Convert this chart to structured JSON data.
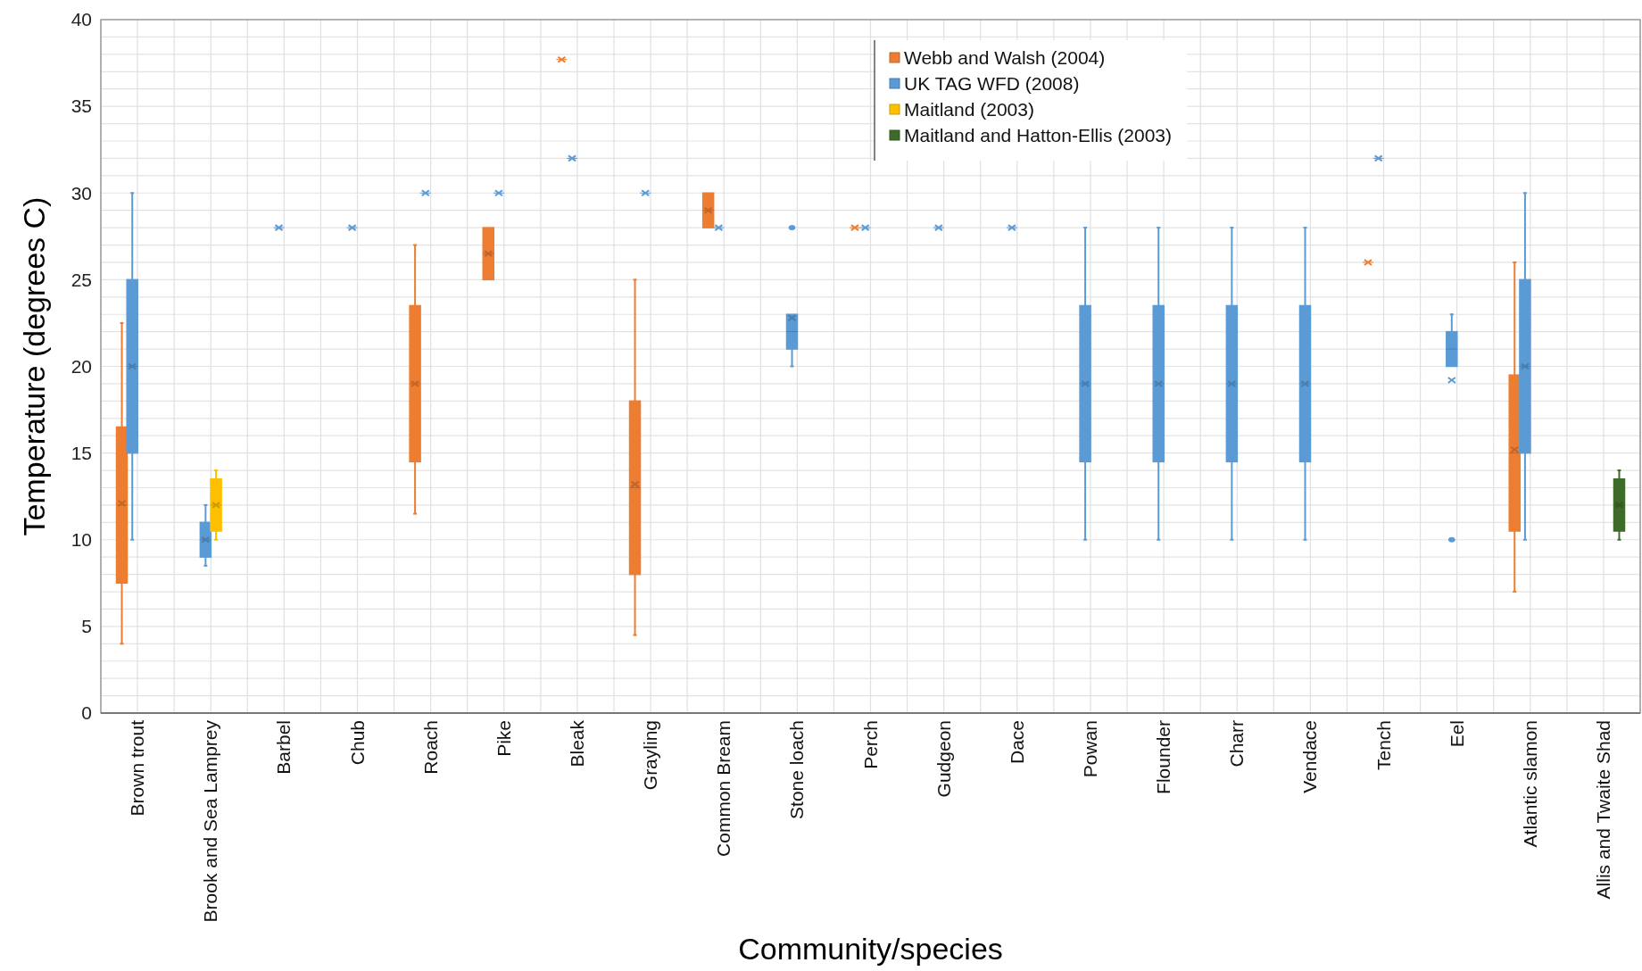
{
  "chart_data": {
    "type": "box",
    "xlabel": "Community/species",
    "ylabel": "Temperature (degrees C)",
    "categories": [
      "Brown trout",
      "Brook and Sea Lamprey",
      "Barbel",
      "Chub",
      "Roach",
      "Pike",
      "Bleak",
      "Grayling",
      "Common Bream",
      "Stone loach",
      "Perch",
      "Gudgeon",
      "Dace",
      "Powan",
      "Flounder",
      "Charr",
      "Vendace",
      "Tench",
      "Eel",
      "Atlantic slamon",
      "Allis and Twaite Shad"
    ],
    "ylim": [
      0,
      40
    ],
    "yticks": [
      0,
      5,
      10,
      15,
      20,
      25,
      30,
      35,
      40
    ],
    "grid": true,
    "legend": "top right",
    "series": [
      {
        "name": "Webb and Walsh (2004)",
        "color": "#ed7d31",
        "boxes": [
          {
            "low": 4,
            "q1": 7.5,
            "median": 12,
            "q3": 16.5,
            "high": 22.5,
            "mean": 12.1
          },
          null,
          null,
          null,
          {
            "low": 11.5,
            "q1": 14.5,
            "median": 19,
            "q3": 23.5,
            "high": 27,
            "mean": 19
          },
          {
            "low": 25,
            "q1": 25,
            "median": 26.5,
            "q3": 28,
            "high": 28,
            "mean": 26.5
          },
          {
            "low": 37.7,
            "q1": 37.7,
            "median": 37.7,
            "q3": 37.7,
            "high": 37.7,
            "mean": 37.7
          },
          {
            "low": 4.5,
            "q1": 8,
            "median": 13,
            "q3": 18,
            "high": 25,
            "mean": 13.2
          },
          {
            "low": 28,
            "q1": 28,
            "median": 29,
            "q3": 30,
            "high": 30,
            "mean": 29
          },
          null,
          {
            "low": 28,
            "q1": 28,
            "median": 28,
            "q3": 28,
            "high": 28,
            "mean": 28
          },
          null,
          null,
          null,
          null,
          null,
          null,
          {
            "low": 26,
            "q1": 26,
            "median": 26,
            "q3": 26,
            "high": 26,
            "mean": 26
          },
          null,
          {
            "low": 7,
            "q1": 10.5,
            "median": 15,
            "q3": 19.5,
            "high": 26,
            "mean": 15.2
          },
          null
        ]
      },
      {
        "name": "UK TAG WFD (2008)",
        "color": "#5b9bd5",
        "boxes": [
          {
            "low": 10,
            "q1": 15,
            "median": 20,
            "q3": 25,
            "high": 30,
            "mean": 20
          },
          {
            "low": 8.5,
            "q1": 9,
            "median": 10,
            "q3": 11,
            "high": 12,
            "mean": 10
          },
          {
            "low": 28,
            "q1": 28,
            "median": 28,
            "q3": 28,
            "high": 28,
            "mean": 28
          },
          {
            "low": 28,
            "q1": 28,
            "median": 28,
            "q3": 28,
            "high": 28,
            "mean": 28
          },
          {
            "low": 30,
            "q1": 30,
            "median": 30,
            "q3": 30,
            "high": 30,
            "mean": 30
          },
          {
            "low": 30,
            "q1": 30,
            "median": 30,
            "q3": 30,
            "high": 30,
            "mean": 30
          },
          {
            "low": 32,
            "q1": 32,
            "median": 32,
            "q3": 32,
            "high": 32,
            "mean": 32
          },
          {
            "low": 30,
            "q1": 30,
            "median": 30,
            "q3": 30,
            "high": 30,
            "mean": 30
          },
          {
            "low": 28,
            "q1": 28,
            "median": 28,
            "q3": 28,
            "high": 28,
            "mean": 28
          },
          {
            "low": 20,
            "q1": 21,
            "median": 22,
            "q3": 23,
            "high": 23,
            "mean": 22.8,
            "outliers": [
              28
            ]
          },
          {
            "low": 28,
            "q1": 28,
            "median": 28,
            "q3": 28,
            "high": 28,
            "mean": 28
          },
          {
            "low": 28,
            "q1": 28,
            "median": 28,
            "q3": 28,
            "high": 28,
            "mean": 28
          },
          {
            "low": 28,
            "q1": 28,
            "median": 28,
            "q3": 28,
            "high": 28,
            "mean": 28
          },
          {
            "low": 10,
            "q1": 14.5,
            "median": 19,
            "q3": 23.5,
            "high": 28,
            "mean": 19
          },
          {
            "low": 10,
            "q1": 14.5,
            "median": 19,
            "q3": 23.5,
            "high": 28,
            "mean": 19
          },
          {
            "low": 10,
            "q1": 14.5,
            "median": 19,
            "q3": 23.5,
            "high": 28,
            "mean": 19
          },
          {
            "low": 10,
            "q1": 14.5,
            "median": 19,
            "q3": 23.5,
            "high": 28,
            "mean": 19
          },
          {
            "low": 32,
            "q1": 32,
            "median": 32,
            "q3": 32,
            "high": 32,
            "mean": 32
          },
          {
            "low": 20,
            "q1": 20,
            "median": 21,
            "q3": 22,
            "high": 23,
            "mean": 19.2,
            "outliers": [
              10
            ]
          },
          {
            "low": 10,
            "q1": 15,
            "median": 20,
            "q3": 25,
            "high": 30,
            "mean": 20
          },
          null
        ]
      },
      {
        "name": "Maitland (2003)",
        "color": "#ffc000",
        "boxes": [
          null,
          {
            "low": 10,
            "q1": 10.5,
            "median": 12,
            "q3": 13.5,
            "high": 14,
            "mean": 12
          },
          null,
          null,
          null,
          null,
          null,
          null,
          null,
          null,
          null,
          null,
          null,
          null,
          null,
          null,
          null,
          null,
          null,
          null,
          null
        ]
      },
      {
        "name": "Maitland and Hatton-Ellis (2003)",
        "color": "#3f6b2a",
        "boxes": [
          null,
          null,
          null,
          null,
          null,
          null,
          null,
          null,
          null,
          null,
          null,
          null,
          null,
          null,
          null,
          null,
          null,
          null,
          null,
          null,
          {
            "low": 10,
            "q1": 10.5,
            "median": 12,
            "q3": 13.5,
            "high": 14,
            "mean": 12
          }
        ]
      }
    ]
  }
}
